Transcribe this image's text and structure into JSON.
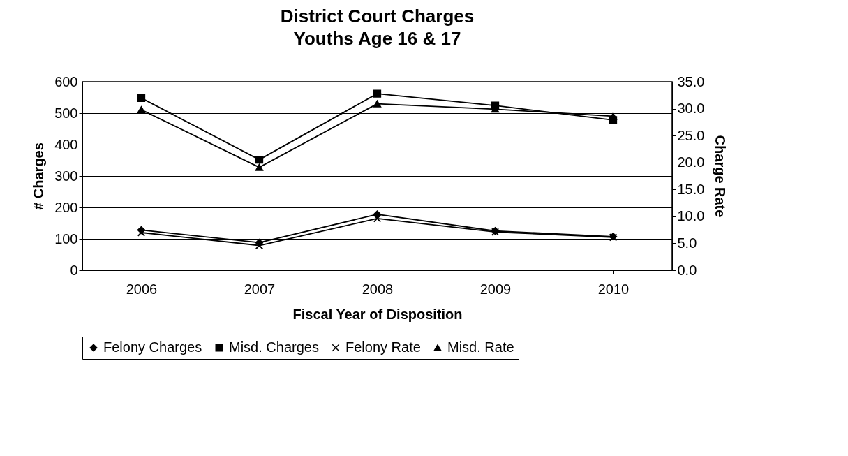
{
  "chart_data": {
    "type": "line",
    "title": "District Court Charges",
    "subtitle": "Youths Age 16 & 17",
    "xlabel": "Fiscal Year of Disposition",
    "ylabel": "# Charges",
    "y2label": "Charge Rate",
    "categories": [
      "2006",
      "2007",
      "2008",
      "2009",
      "2010"
    ],
    "series": [
      {
        "name": "Felony Charges",
        "color": "#000000",
        "marker": "diamond",
        "values": [
          128,
          88,
          178,
          125,
          107
        ]
      },
      {
        "name": "Misd. Charges",
        "color": "#000000",
        "marker": "square",
        "values": [
          548,
          352,
          562,
          524,
          478
        ]
      },
      {
        "name": "Felony Rate",
        "color": "#000000",
        "marker": "cross",
        "axis": "y2",
        "values": [
          7.0,
          4.6,
          9.6,
          7.1,
          6.1
        ]
      },
      {
        "name": "Misd. Rate",
        "color": "#000000",
        "marker": "triangle",
        "axis": "y2",
        "values": [
          29.8,
          19.1,
          30.9,
          29.9,
          28.6
        ]
      }
    ],
    "ylim": [
      0,
      600
    ],
    "yticks": [
      0,
      100,
      200,
      300,
      400,
      500,
      600
    ],
    "y2lim": [
      0,
      35
    ],
    "y2ticks": [
      {
        "value": 0,
        "label": "0.0"
      },
      {
        "value": 5,
        "label": "5.0"
      },
      {
        "value": 10,
        "label": "10.0"
      },
      {
        "value": 15,
        "label": "15.0"
      },
      {
        "value": 20,
        "label": "20.0"
      },
      {
        "value": 25,
        "label": "25.0"
      },
      {
        "value": 30,
        "label": "30.0"
      },
      {
        "value": 35,
        "label": "35.0"
      }
    ],
    "grid": "y",
    "legend": "bottom",
    "line_style": "solid"
  }
}
